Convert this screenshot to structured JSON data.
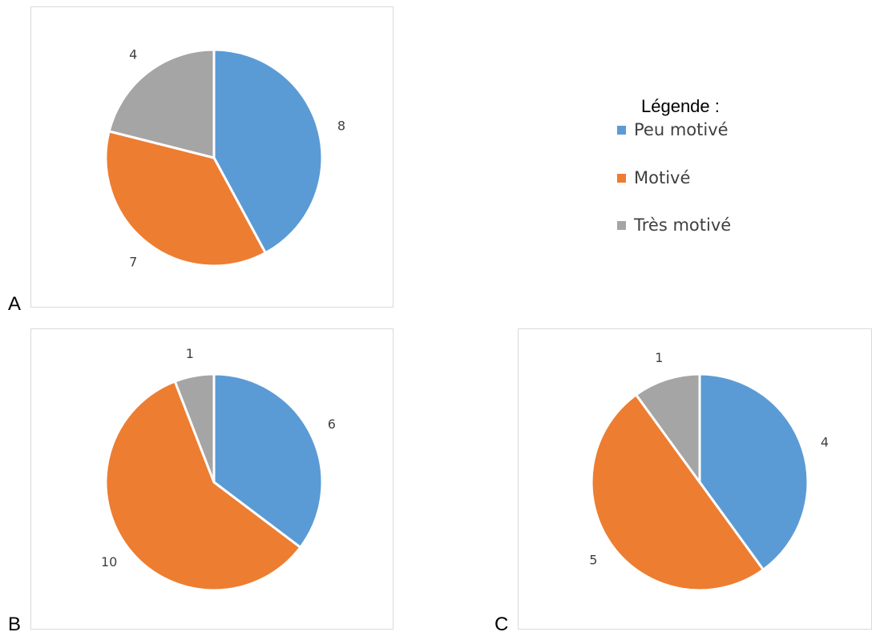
{
  "chart_data": [
    {
      "type": "pie",
      "panel": "A",
      "categories": [
        "Peu motivé",
        "Motivé",
        "Très motivé"
      ],
      "values": [
        8,
        7,
        4
      ],
      "data_labels": [
        "8",
        "7",
        "4"
      ]
    },
    {
      "type": "pie",
      "panel": "B",
      "categories": [
        "Peu motivé",
        "Motivé",
        "Très motivé"
      ],
      "values": [
        6,
        10,
        1
      ],
      "data_labels": [
        "6",
        "10",
        "1"
      ]
    },
    {
      "type": "pie",
      "panel": "C",
      "categories": [
        "Peu motivé",
        "Motivé",
        "Très motivé"
      ],
      "values": [
        4,
        5,
        1
      ],
      "data_labels": [
        "4",
        "5",
        "1"
      ]
    }
  ],
  "legend": {
    "title": "Légende :",
    "placement": "top-right",
    "items": [
      {
        "label": "Peu motivé",
        "color": "#5b9bd5"
      },
      {
        "label": "Motivé",
        "color": "#ed7d31"
      },
      {
        "label": "Très motivé",
        "color": "#a5a5a5"
      }
    ]
  },
  "panels": {
    "a_letter": "A",
    "b_letter": "B",
    "c_letter": "C"
  }
}
